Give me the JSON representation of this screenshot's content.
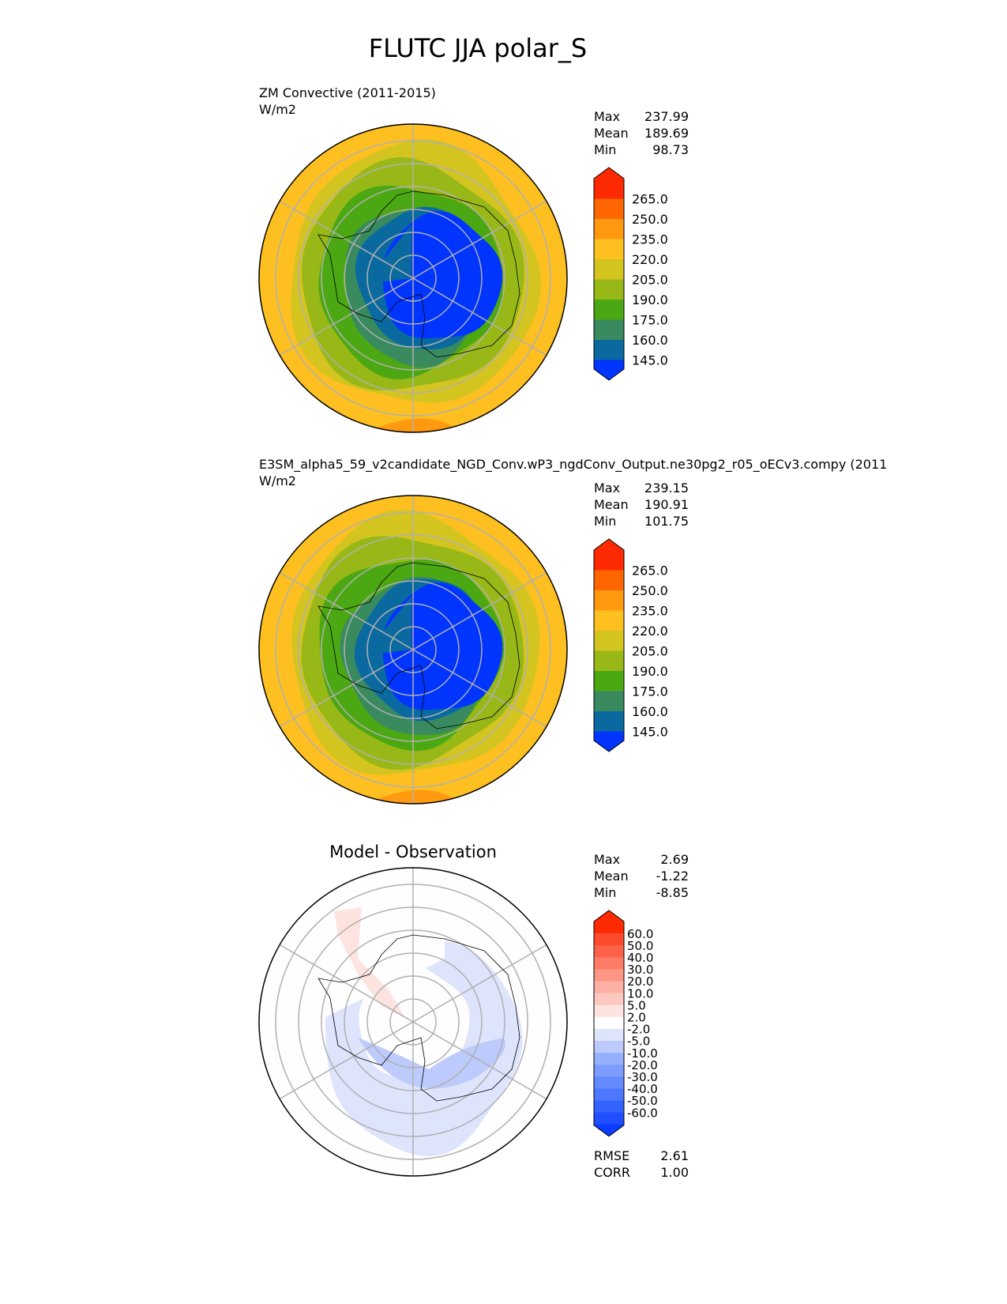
{
  "title": "FLUTC JJA polar_S",
  "chart_data": [
    {
      "type": "heatmap",
      "projection": "south polar stereographic",
      "title": "ZM Convective (2011-2015)",
      "units": "W/m2",
      "stats": [
        {
          "label": "Max",
          "value": "237.99"
        },
        {
          "label": "Mean",
          "value": "189.69"
        },
        {
          "label": "Min",
          "value": "98.73"
        }
      ],
      "levels": [
        145.0,
        160.0,
        175.0,
        190.0,
        205.0,
        220.0,
        235.0,
        250.0,
        265.0
      ],
      "level_labels": [
        "145.0",
        "160.0",
        "175.0",
        "190.0",
        "205.0",
        "220.0",
        "235.0",
        "250.0",
        "265.0"
      ],
      "colors": [
        "#0034ff",
        "#0a6aa0",
        "#3a8a60",
        "#4ca812",
        "#98b818",
        "#d4c420",
        "#fdc020",
        "#ff9a10",
        "#ff6600",
        "#ff2a00"
      ],
      "bands_inner_to_outer": [
        145,
        160,
        175,
        190,
        205,
        220,
        235
      ],
      "extend": "both"
    },
    {
      "type": "heatmap",
      "projection": "south polar stereographic",
      "title": "E3SM_alpha5_59_v2candidate_NGD_Conv.wP3_ngdConv_Output.ne30pg2_r05_oECv3.compy (2011",
      "units": "W/m2",
      "stats": [
        {
          "label": "Max",
          "value": "239.15"
        },
        {
          "label": "Mean",
          "value": "190.91"
        },
        {
          "label": "Min",
          "value": "101.75"
        }
      ],
      "levels": [
        145.0,
        160.0,
        175.0,
        190.0,
        205.0,
        220.0,
        235.0,
        250.0,
        265.0
      ],
      "level_labels": [
        "145.0",
        "160.0",
        "175.0",
        "190.0",
        "205.0",
        "220.0",
        "235.0",
        "250.0",
        "265.0"
      ],
      "colors": [
        "#0034ff",
        "#0a6aa0",
        "#3a8a60",
        "#4ca812",
        "#98b818",
        "#d4c420",
        "#fdc020",
        "#ff9a10",
        "#ff6600",
        "#ff2a00"
      ],
      "extend": "both"
    },
    {
      "type": "heatmap",
      "projection": "south polar stereographic",
      "title": "Model - Observation",
      "stats": [
        {
          "label": "Max",
          "value": "2.69"
        },
        {
          "label": "Mean",
          "value": "-1.22"
        },
        {
          "label": "Min",
          "value": "-8.85"
        }
      ],
      "metrics": [
        {
          "label": "RMSE",
          "value": "2.61"
        },
        {
          "label": "CORR",
          "value": "1.00"
        }
      ],
      "levels": [
        -60,
        -50,
        -40,
        -30,
        -20,
        -10,
        -5,
        -2,
        2,
        5,
        10,
        20,
        30,
        40,
        50,
        60
      ],
      "level_labels": [
        "-60.0",
        "-50.0",
        "-40.0",
        "-30.0",
        "-20.0",
        "-10.0",
        "-5.0",
        "-2.0",
        "2.0",
        "5.0",
        "10.0",
        "20.0",
        "30.0",
        "40.0",
        "50.0",
        "60.0"
      ],
      "colors": [
        "#0a3cff",
        "#1f4fff",
        "#3563ff",
        "#4d77ff",
        "#658aff",
        "#7d9dfe",
        "#97b0fd",
        "#bccafc",
        "#dde4fc",
        "#ffffff",
        "#fde4e0",
        "#fdc8c0",
        "#fdb0a4",
        "#fd9684",
        "#fd7c66",
        "#fd6248",
        "#fe4a2c",
        "#ff2a00"
      ],
      "extend": "both"
    }
  ]
}
